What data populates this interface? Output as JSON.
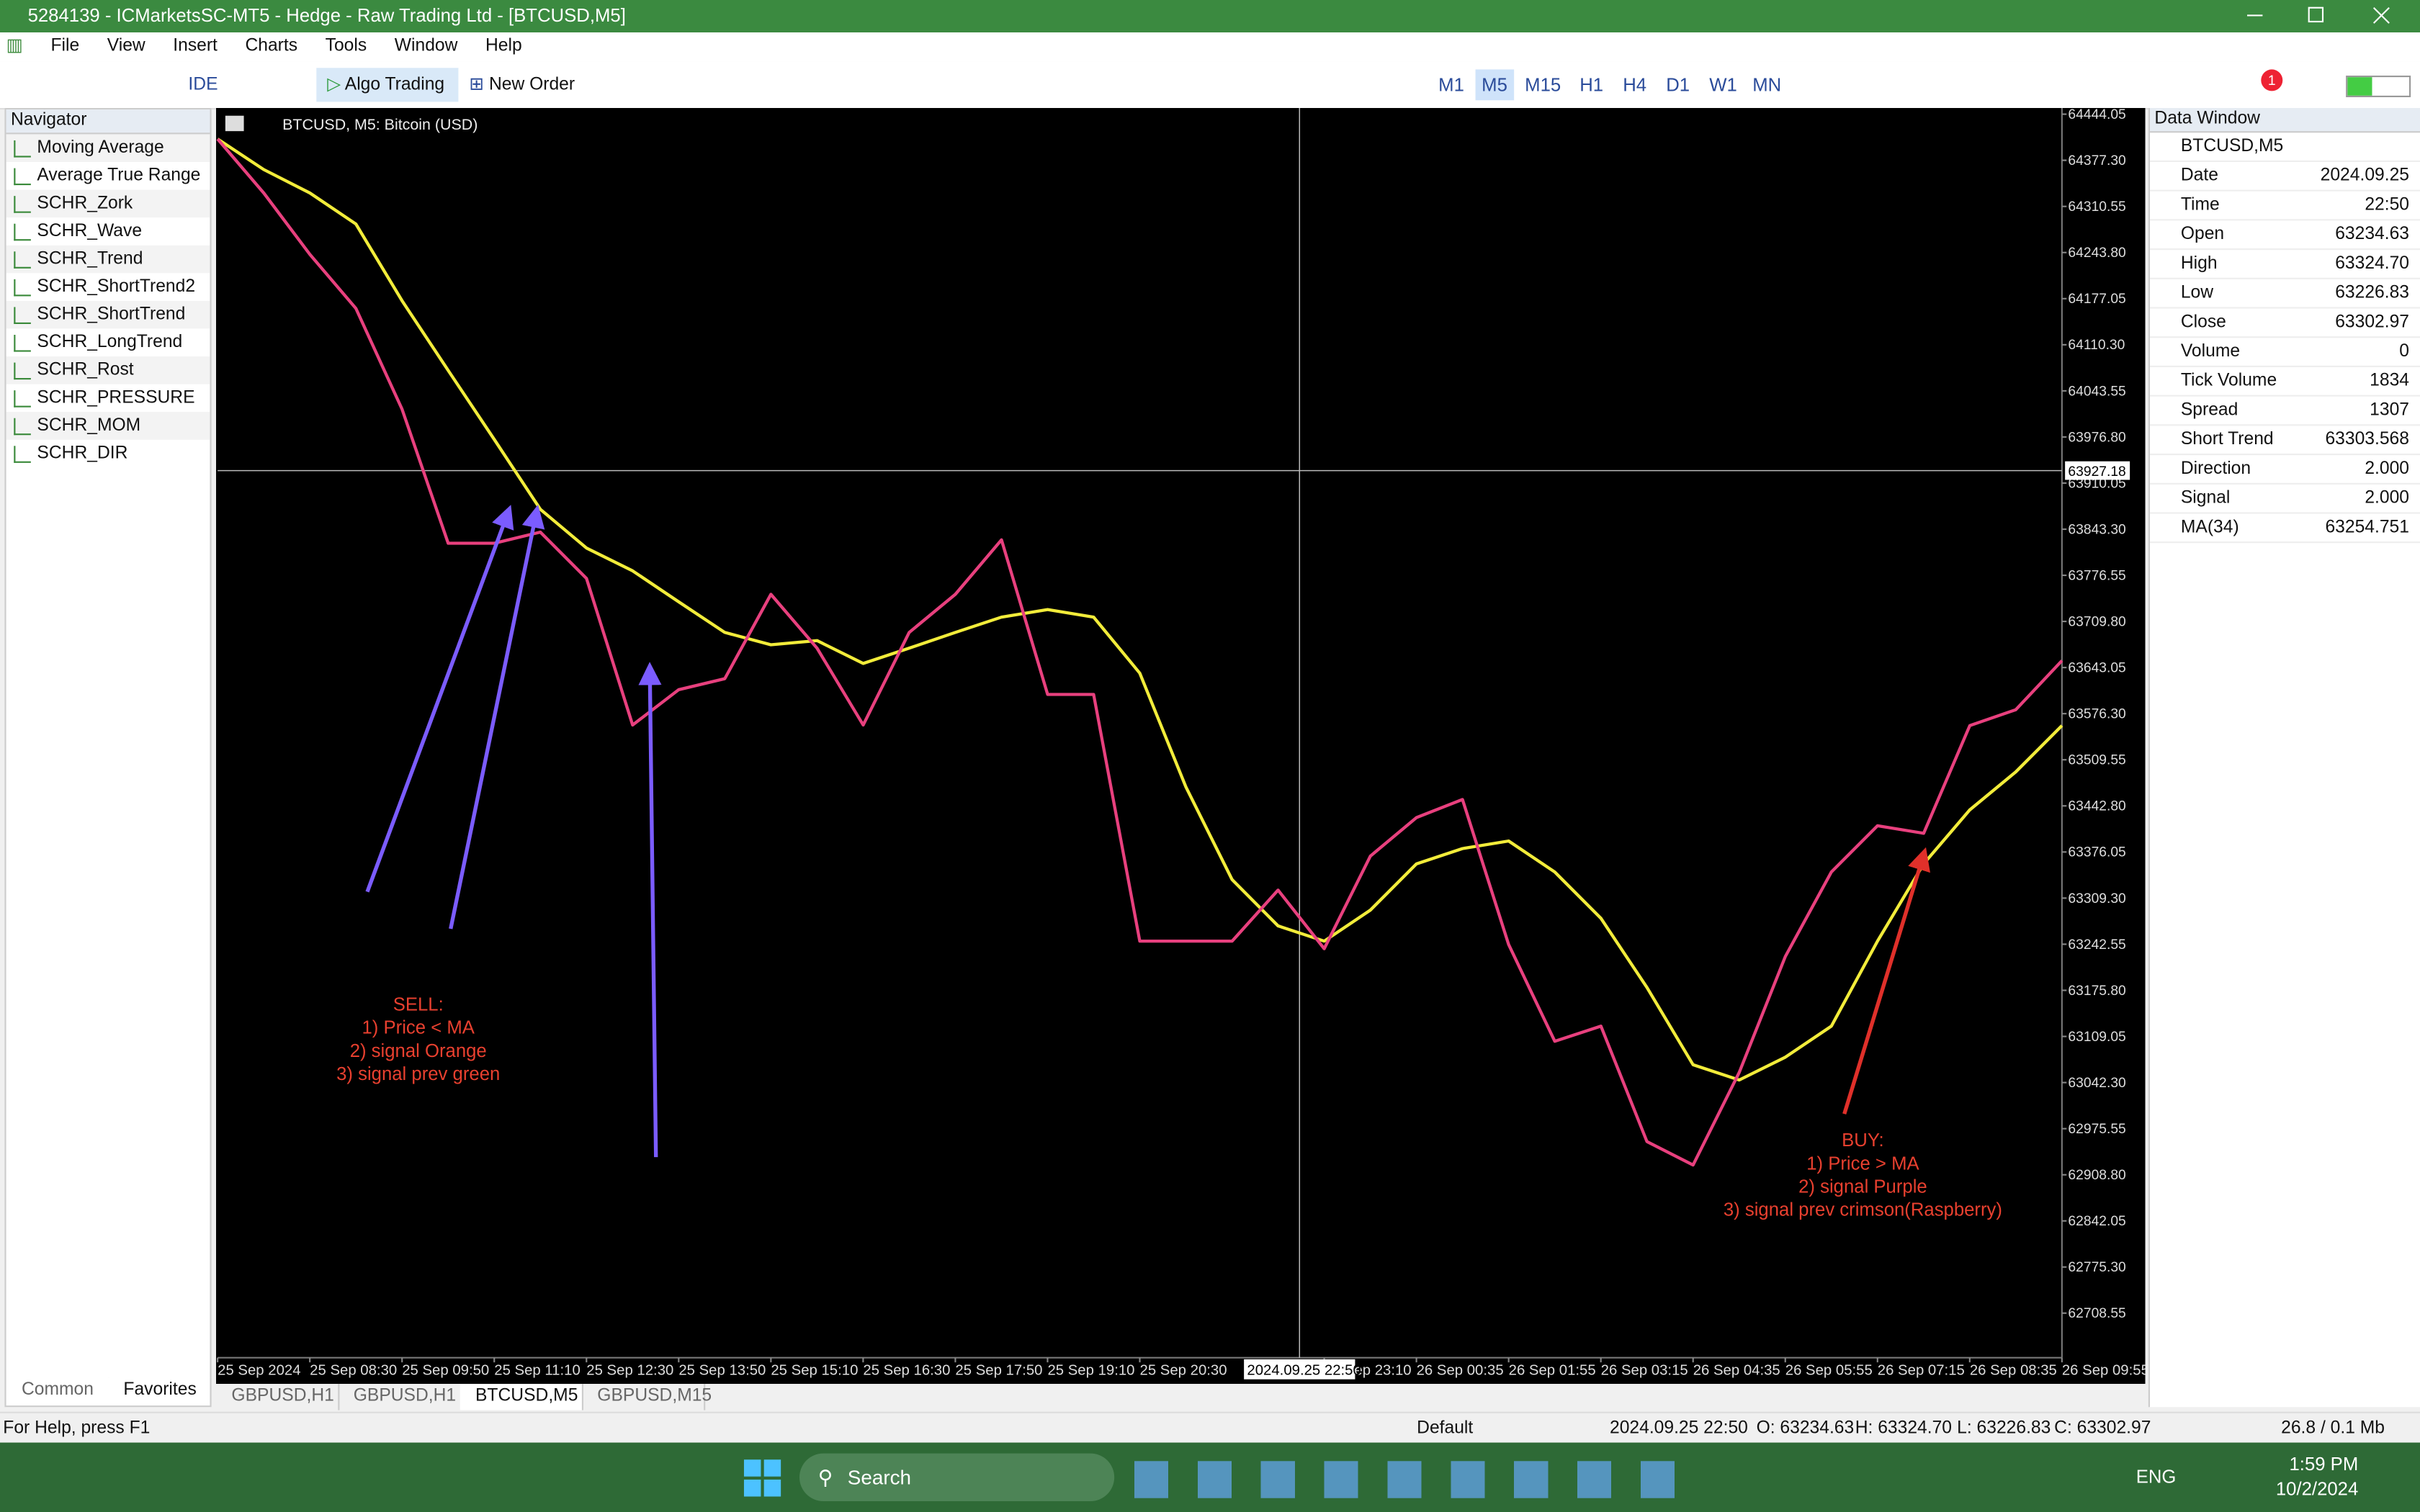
{
  "window": {
    "title": "5284139 - ICMarketsSC-MT5 - Hedge - Raw Trading Ltd - [BTCUSD,M5]"
  },
  "menu": [
    "File",
    "View",
    "Insert",
    "Charts",
    "Tools",
    "Window",
    "Help"
  ],
  "toolbar": {
    "ide": "IDE",
    "algo": "Algo Trading",
    "order": "New Order",
    "badge": "1",
    "timeframes": [
      "M1",
      "M5",
      "M15",
      "H1",
      "H4",
      "D1",
      "W1",
      "MN"
    ]
  },
  "navigator": {
    "title": "Navigator",
    "items": [
      "Moving Average",
      "Average True Range",
      "SCHR_Zork",
      "SCHR_Wave",
      "SCHR_Trend",
      "SCHR_ShortTrend2",
      "SCHR_ShortTrend",
      "SCHR_LongTrend",
      "SCHR_Rost",
      "SCHR_PRESSURE",
      "SCHR_MOM",
      "SCHR_DIR"
    ],
    "tabs": [
      "Common",
      "Favorites"
    ]
  },
  "data_window": {
    "title": "Data Window",
    "symbol": "BTCUSD,M5",
    "rows": [
      {
        "label": "Date",
        "value": "2024.09.25"
      },
      {
        "label": "Time",
        "value": "22:50"
      },
      {
        "label": "Open",
        "value": "63234.63"
      },
      {
        "label": "High",
        "value": "63324.70"
      },
      {
        "label": "Low",
        "value": "63226.83"
      },
      {
        "label": "Close",
        "value": "63302.97"
      },
      {
        "label": "Volume",
        "value": "0"
      },
      {
        "label": "Tick Volume",
        "value": "1834"
      },
      {
        "label": "Spread",
        "value": "1307"
      },
      {
        "label": "Short Trend",
        "value": "63303.568"
      },
      {
        "label": "Direction",
        "value": "2.000"
      },
      {
        "label": "Signal",
        "value": "2.000"
      },
      {
        "label": "MA(34)",
        "value": "63254.751"
      }
    ]
  },
  "chart_data": {
    "type": "line",
    "title": "BTCUSD, M5:  Bitcoin (USD)",
    "categories": [
      "25 Sep 2024",
      null,
      "25 Sep 08:30",
      null,
      "25 Sep 09:50",
      null,
      "25 Sep 11:10",
      null,
      "25 Sep 12:30",
      null,
      "25 Sep 13:50",
      null,
      "25 Sep 15:10",
      null,
      "25 Sep 16:30",
      null,
      "25 Sep 17:50",
      null,
      "25 Sep 19:10",
      null,
      "25 Sep 20:30",
      null,
      null,
      null,
      "25 Sep 23:10",
      null,
      "26 Sep 00:35",
      null,
      "26 Sep 01:55",
      null,
      "26 Sep 03:15",
      null,
      "26 Sep 04:35",
      null,
      "26 Sep 05:55",
      null,
      "26 Sep 07:15",
      null,
      "26 Sep 08:35",
      null,
      "26 Sep 09:55"
    ],
    "series": [
      {
        "name": "MA(34)",
        "color": "#f2ec3a",
        "values": [
          64408,
          64364,
          64330,
          64285,
          64174,
          64073,
          63973,
          63872,
          63816,
          63783,
          63738,
          63694,
          63676,
          63682,
          63649,
          63671,
          63694,
          63716,
          63727,
          63716,
          63635,
          63470,
          63336,
          63269,
          63247,
          63292,
          63359,
          63381,
          63392,
          63347,
          63280,
          63180,
          63068,
          63046,
          63079,
          63124,
          63247,
          63359,
          63437,
          63492,
          63559
        ]
      },
      {
        "name": "Short Trend",
        "color": "#e8407e",
        "values": [
          64408,
          64330,
          64241,
          64163,
          64017,
          63823,
          63823,
          63839,
          63772,
          63560,
          63611,
          63627,
          63749,
          63671,
          63560,
          63694,
          63749,
          63828,
          63604,
          63604,
          63247,
          63247,
          63247,
          63321,
          63236,
          63370,
          63426,
          63452,
          63242,
          63102,
          63124,
          62957,
          62923,
          63057,
          63225,
          63347,
          63414,
          63403,
          63559,
          63582,
          63653
        ]
      }
    ],
    "ylim": [
      62644,
      64453
    ],
    "yticks": [
      {
        "value": 64444.05,
        "label": "64444.05"
      },
      {
        "value": 64377.3,
        "label": "64377.30"
      },
      {
        "value": 64310.55,
        "label": "64310.55"
      },
      {
        "value": 64243.8,
        "label": "64243.80"
      },
      {
        "value": 64177.05,
        "label": "64177.05"
      },
      {
        "value": 64110.3,
        "label": "64110.30"
      },
      {
        "value": 64043.55,
        "label": "64043.55"
      },
      {
        "value": 63976.8,
        "label": "63976.80"
      },
      {
        "value": 63910.05,
        "label": "63910.05"
      },
      {
        "value": 63843.3,
        "label": "63843.30"
      },
      {
        "value": 63776.55,
        "label": "63776.55"
      },
      {
        "value": 63709.8,
        "label": "63709.80"
      },
      {
        "value": 63643.05,
        "label": "63643.05"
      },
      {
        "value": 63576.3,
        "label": "63576.30"
      },
      {
        "value": 63509.55,
        "label": "63509.55"
      },
      {
        "value": 63442.8,
        "label": "63442.80"
      },
      {
        "value": 63376.05,
        "label": "63376.05"
      },
      {
        "value": 63309.3,
        "label": "63309.30"
      },
      {
        "value": 63242.55,
        "label": "63242.55"
      },
      {
        "value": 63175.8,
        "label": "63175.80"
      },
      {
        "value": 63109.05,
        "label": "63109.05"
      },
      {
        "value": 63042.3,
        "label": "63042.30"
      },
      {
        "value": 62975.55,
        "label": "62975.55"
      },
      {
        "value": 62908.8,
        "label": "62908.80"
      },
      {
        "value": 62842.05,
        "label": "62842.05"
      },
      {
        "value": 62775.3,
        "label": "62775.30"
      },
      {
        "value": 62708.55,
        "label": "62708.55"
      }
    ],
    "crosshair": {
      "price": "63927.18",
      "time": "2024.09.25 22:50"
    },
    "annotations": {
      "sell": [
        "SELL:",
        "1) Price < MA",
        "2) signal Orange",
        "3) signal prev green"
      ],
      "buy": [
        "BUY:",
        "1) Price > MA",
        "2) signal Purple",
        "3) signal prev crimson(Raspberry)"
      ]
    }
  },
  "chart_tabs": [
    "GBPUSD,H1",
    "GBPUSD,H1",
    "BTCUSD,M5",
    "GBPUSD,M15"
  ],
  "status": {
    "help": "For Help, press F1",
    "profile": "Default",
    "time": "2024.09.25 22:50",
    "open": "O: 63234.63",
    "high": "H: 63324.70",
    "low": "L: 63226.83",
    "close": "C: 63302.97",
    "traffic": "26.8 / 0.1 Mb"
  },
  "taskbar": {
    "search": "Search",
    "lang": "ENG",
    "clock": "1:59 PM",
    "date": "10/2/2024"
  }
}
